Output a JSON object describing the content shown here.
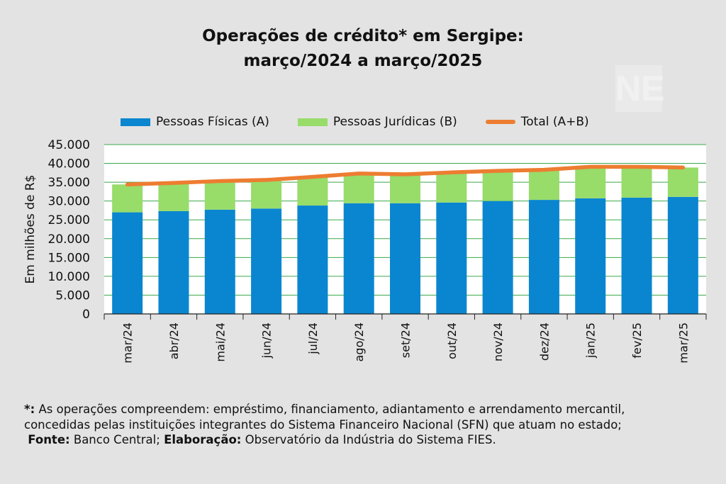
{
  "chart_data": {
    "type": "stacked-bar+line",
    "title_line1": "Operações de crédito* em Sergipe:",
    "title_line2": "março/2024 a março/2025",
    "ylabel": "Em milhões de R$",
    "ylim": [
      0,
      45000
    ],
    "yticks": [
      "0",
      "5.000",
      "10.000",
      "15.000",
      "20.000",
      "25.000",
      "30.000",
      "35.000",
      "40.000",
      "45.000"
    ],
    "ytick_values": [
      0,
      5000,
      10000,
      15000,
      20000,
      25000,
      30000,
      35000,
      40000,
      45000
    ],
    "grid": true,
    "legend_position": "top",
    "categories": [
      "mar/24",
      "abr/24",
      "mai/24",
      "jun/24",
      "jul/24",
      "ago/24",
      "set/24",
      "out/24",
      "nov/24",
      "dez/24",
      "jan/25",
      "fev/25",
      "mar/25"
    ],
    "series": [
      {
        "name": "Pessoas Físicas (A)",
        "type": "bar",
        "color": "#0a86d0",
        "values": [
          27000,
          27300,
          27700,
          28000,
          28800,
          29400,
          29400,
          29600,
          30000,
          30300,
          30700,
          30900,
          31100
        ]
      },
      {
        "name": "Pessoas Jurídicas (B)",
        "type": "bar",
        "color": "#98dc6a",
        "values": [
          7400,
          7500,
          7600,
          7600,
          7600,
          7900,
          7700,
          8000,
          8000,
          8000,
          8400,
          8200,
          7800
        ]
      },
      {
        "name": "Total (A+B)",
        "type": "line",
        "color": "#ed7d31",
        "values": [
          34400,
          34800,
          35300,
          35600,
          36400,
          37300,
          37100,
          37600,
          38000,
          38300,
          39100,
          39100,
          38900
        ]
      }
    ]
  },
  "footnote": {
    "asterisk": "*:",
    "line1": " As operações compreendem: empréstimo, financiamento, adiantamento e arrendamento mercantil,",
    "line2": "concedidas pelas instituições integrantes do Sistema Financeiro Nacional (SFN) que atuam no estado;",
    "source_label": "Fonte:",
    "source_text": " Banco Central; ",
    "elab_label": "Elaboração:",
    "elab_text": " Observatório da Indústria do Sistema FIES."
  },
  "watermark": "NE"
}
